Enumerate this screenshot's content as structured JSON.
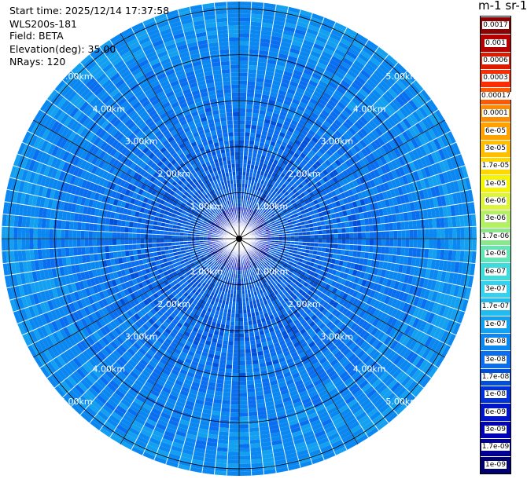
{
  "header": {
    "start_time": "Start time: 2025/12/14 17:37:58",
    "instrument": "WLS200s-181",
    "field": "Field: BETA",
    "elevation": "Elevation(deg): 35.00",
    "nrays": "NRays: 120"
  },
  "colorbar": {
    "units_label": "m-1 sr-1",
    "labels": [
      "0.0017",
      "0.001",
      "0.0006",
      "0.0003",
      "0.00017",
      "0.0001",
      "6e-05",
      "3e-05",
      "1.7e-05",
      "1e-05",
      "6e-06",
      "3e-06",
      "1.7e-06",
      "1e-06",
      "6e-07",
      "3e-07",
      "1.7e-07",
      "1e-07",
      "6e-08",
      "3e-08",
      "1.7e-08",
      "1e-08",
      "6e-09",
      "3e-09",
      "1.7e-09",
      "1e-09"
    ],
    "colors": [
      "#8b0000",
      "#b40000",
      "#dc1a00",
      "#ff2b00",
      "#ff5a00",
      "#ff8c00",
      "#ffa200",
      "#ffbe00",
      "#ffd800",
      "#f5f500",
      "#dcf53c",
      "#b4f064",
      "#8ce68c",
      "#64e6b4",
      "#3cdcdc",
      "#32d2f0",
      "#20bcf0",
      "#14a0f0",
      "#0a87f0",
      "#0a6ef0",
      "#0050dc",
      "#0032dc",
      "#0014c8",
      "#0000b4",
      "#000096",
      "#00006e"
    ]
  },
  "chart_data": {
    "type": "heatmap",
    "subtype": "ppi-polar",
    "title": "",
    "range_rings_km": [
      1,
      2,
      3,
      4,
      5
    ],
    "ring_labels": [
      "1.00km",
      "2.00km",
      "3.00km",
      "4.00km",
      "5.00km"
    ],
    "max_range_km": 5.0,
    "rays": 120,
    "azimuth_grid_deg": 30,
    "value_min": 1e-09,
    "value_max": 0.0017,
    "dominant_value_range": [
      1e-08,
      1.7e-07
    ],
    "colorscale": "logarithmic"
  }
}
